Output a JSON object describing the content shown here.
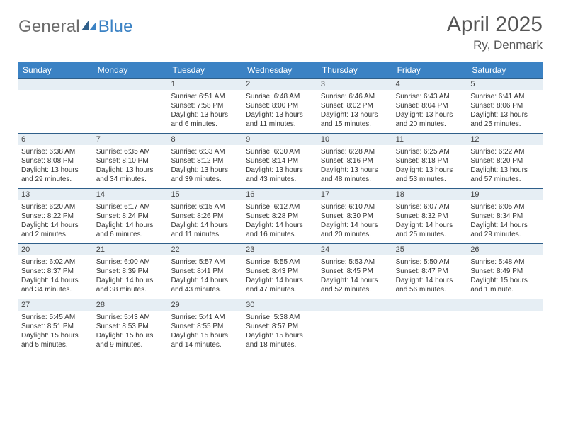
{
  "logo": {
    "general": "General",
    "blue": "Blue"
  },
  "title": "April 2025",
  "location": "Ry, Denmark",
  "colors": {
    "header_bg": "#3b82c4",
    "daybar_bg": "#e6eef4",
    "daybar_border": "#2f5f8a",
    "text": "#333333",
    "logo_gray": "#6d6d6d",
    "logo_blue": "#3b82c4"
  },
  "weekdays": [
    "Sunday",
    "Monday",
    "Tuesday",
    "Wednesday",
    "Thursday",
    "Friday",
    "Saturday"
  ],
  "weeks": [
    [
      null,
      null,
      {
        "n": "1",
        "sunrise": "6:51 AM",
        "sunset": "7:58 PM",
        "daylight": "13 hours and 6 minutes."
      },
      {
        "n": "2",
        "sunrise": "6:48 AM",
        "sunset": "8:00 PM",
        "daylight": "13 hours and 11 minutes."
      },
      {
        "n": "3",
        "sunrise": "6:46 AM",
        "sunset": "8:02 PM",
        "daylight": "13 hours and 15 minutes."
      },
      {
        "n": "4",
        "sunrise": "6:43 AM",
        "sunset": "8:04 PM",
        "daylight": "13 hours and 20 minutes."
      },
      {
        "n": "5",
        "sunrise": "6:41 AM",
        "sunset": "8:06 PM",
        "daylight": "13 hours and 25 minutes."
      }
    ],
    [
      {
        "n": "6",
        "sunrise": "6:38 AM",
        "sunset": "8:08 PM",
        "daylight": "13 hours and 29 minutes."
      },
      {
        "n": "7",
        "sunrise": "6:35 AM",
        "sunset": "8:10 PM",
        "daylight": "13 hours and 34 minutes."
      },
      {
        "n": "8",
        "sunrise": "6:33 AM",
        "sunset": "8:12 PM",
        "daylight": "13 hours and 39 minutes."
      },
      {
        "n": "9",
        "sunrise": "6:30 AM",
        "sunset": "8:14 PM",
        "daylight": "13 hours and 43 minutes."
      },
      {
        "n": "10",
        "sunrise": "6:28 AM",
        "sunset": "8:16 PM",
        "daylight": "13 hours and 48 minutes."
      },
      {
        "n": "11",
        "sunrise": "6:25 AM",
        "sunset": "8:18 PM",
        "daylight": "13 hours and 53 minutes."
      },
      {
        "n": "12",
        "sunrise": "6:22 AM",
        "sunset": "8:20 PM",
        "daylight": "13 hours and 57 minutes."
      }
    ],
    [
      {
        "n": "13",
        "sunrise": "6:20 AM",
        "sunset": "8:22 PM",
        "daylight": "14 hours and 2 minutes."
      },
      {
        "n": "14",
        "sunrise": "6:17 AM",
        "sunset": "8:24 PM",
        "daylight": "14 hours and 6 minutes."
      },
      {
        "n": "15",
        "sunrise": "6:15 AM",
        "sunset": "8:26 PM",
        "daylight": "14 hours and 11 minutes."
      },
      {
        "n": "16",
        "sunrise": "6:12 AM",
        "sunset": "8:28 PM",
        "daylight": "14 hours and 16 minutes."
      },
      {
        "n": "17",
        "sunrise": "6:10 AM",
        "sunset": "8:30 PM",
        "daylight": "14 hours and 20 minutes."
      },
      {
        "n": "18",
        "sunrise": "6:07 AM",
        "sunset": "8:32 PM",
        "daylight": "14 hours and 25 minutes."
      },
      {
        "n": "19",
        "sunrise": "6:05 AM",
        "sunset": "8:34 PM",
        "daylight": "14 hours and 29 minutes."
      }
    ],
    [
      {
        "n": "20",
        "sunrise": "6:02 AM",
        "sunset": "8:37 PM",
        "daylight": "14 hours and 34 minutes."
      },
      {
        "n": "21",
        "sunrise": "6:00 AM",
        "sunset": "8:39 PM",
        "daylight": "14 hours and 38 minutes."
      },
      {
        "n": "22",
        "sunrise": "5:57 AM",
        "sunset": "8:41 PM",
        "daylight": "14 hours and 43 minutes."
      },
      {
        "n": "23",
        "sunrise": "5:55 AM",
        "sunset": "8:43 PM",
        "daylight": "14 hours and 47 minutes."
      },
      {
        "n": "24",
        "sunrise": "5:53 AM",
        "sunset": "8:45 PM",
        "daylight": "14 hours and 52 minutes."
      },
      {
        "n": "25",
        "sunrise": "5:50 AM",
        "sunset": "8:47 PM",
        "daylight": "14 hours and 56 minutes."
      },
      {
        "n": "26",
        "sunrise": "5:48 AM",
        "sunset": "8:49 PM",
        "daylight": "15 hours and 1 minute."
      }
    ],
    [
      {
        "n": "27",
        "sunrise": "5:45 AM",
        "sunset": "8:51 PM",
        "daylight": "15 hours and 5 minutes."
      },
      {
        "n": "28",
        "sunrise": "5:43 AM",
        "sunset": "8:53 PM",
        "daylight": "15 hours and 9 minutes."
      },
      {
        "n": "29",
        "sunrise": "5:41 AM",
        "sunset": "8:55 PM",
        "daylight": "15 hours and 14 minutes."
      },
      {
        "n": "30",
        "sunrise": "5:38 AM",
        "sunset": "8:57 PM",
        "daylight": "15 hours and 18 minutes."
      },
      null,
      null,
      null
    ]
  ]
}
